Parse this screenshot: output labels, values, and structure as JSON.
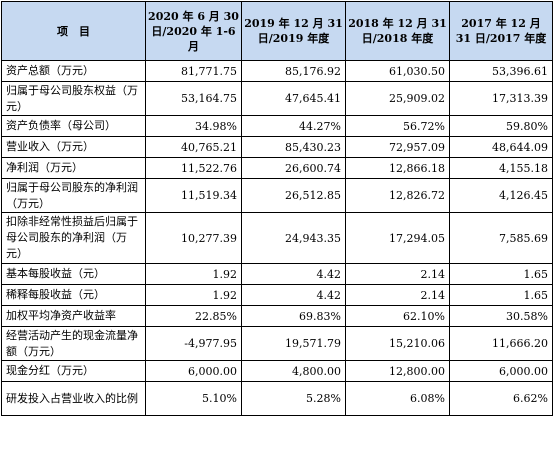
{
  "table": {
    "headers": [
      "项　目",
      "2020 年 6 月 30 日/2020 年 1-6 月",
      "2019 年 12 月 31 日/2019 年度",
      "2018 年 12 月 31 日/2018 年度",
      "2017 年 12 月 31 日/2017 年度"
    ],
    "rows": [
      {
        "label": "资产总额（万元）",
        "values": [
          "81,771.75",
          "85,176.92",
          "61,030.50",
          "53,396.61"
        ]
      },
      {
        "label": "归属于母公司股东权益（万元）",
        "values": [
          "53,164.75",
          "47,645.41",
          "25,909.02",
          "17,313.39"
        ]
      },
      {
        "label": "资产负债率（母公司）",
        "values": [
          "34.98%",
          "44.27%",
          "56.72%",
          "59.80%"
        ]
      },
      {
        "label": "营业收入（万元）",
        "values": [
          "40,765.21",
          "85,430.23",
          "72,957.09",
          "48,644.09"
        ]
      },
      {
        "label": "净利润（万元）",
        "values": [
          "11,522.76",
          "26,600.74",
          "12,866.18",
          "4,155.18"
        ]
      },
      {
        "label": "归属于母公司股东的净利润（万元）",
        "values": [
          "11,519.34",
          "26,512.85",
          "12,826.72",
          "4,126.45"
        ]
      },
      {
        "label": "扣除非经常性损益后归属于母公司股东的净利润（万元）",
        "values": [
          "10,277.39",
          "24,943.35",
          "17,294.05",
          "7,585.69"
        ]
      },
      {
        "label": "基本每股收益（元）",
        "values": [
          "1.92",
          "4.42",
          "2.14",
          "1.65"
        ]
      },
      {
        "label": "稀释每股收益（元）",
        "values": [
          "1.92",
          "4.42",
          "2.14",
          "1.65"
        ]
      },
      {
        "label": "加权平均净资产收益率",
        "values": [
          "22.85%",
          "69.83%",
          "62.10%",
          "30.58%"
        ]
      },
      {
        "label": "经营活动产生的现金流量净额（万元）",
        "values": [
          "-4,977.95",
          "19,571.79",
          "15,210.06",
          "11,666.20"
        ]
      },
      {
        "label": "现金分红（万元）",
        "values": [
          "6,000.00",
          "4,800.00",
          "12,800.00",
          "6,000.00"
        ]
      },
      {
        "label": "研发投入占营业收入的比例",
        "values": [
          "5.10%",
          "5.28%",
          "6.08%",
          "6.62%"
        ]
      }
    ]
  }
}
